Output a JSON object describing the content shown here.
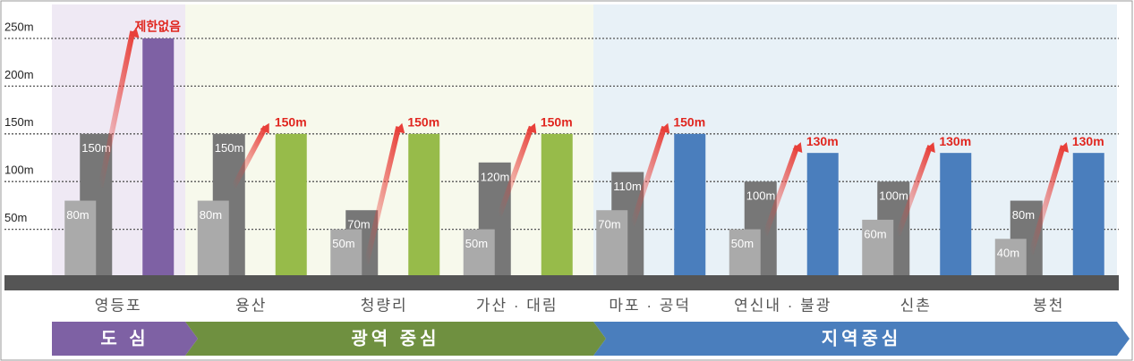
{
  "chart_data": {
    "type": "bar",
    "categories": [
      "영등포",
      "용산",
      "청량리",
      "가산 · 대림",
      "마포 · 공덕",
      "연신내 · 불광",
      "신촌",
      "봉천"
    ],
    "groups": [
      "도 심",
      "광역 중심",
      "지역중심"
    ],
    "series": [
      {
        "color": "#aaaaaa",
        "values": [
          80,
          80,
          50,
          50,
          70,
          50,
          60,
          40
        ],
        "value_labels": [
          "80m",
          "80m",
          "50m",
          "50m",
          "70m",
          "50m",
          "60m",
          "40m"
        ]
      },
      {
        "color": "#777777",
        "values": [
          150,
          150,
          70,
          120,
          110,
          100,
          100,
          80
        ],
        "value_labels": [
          "150m",
          "150m",
          "70m",
          "120m",
          "110m",
          "100m",
          "100m",
          "80m"
        ]
      },
      {
        "colors": [
          "#7e61a4",
          "#97bb4a",
          "#97bb4a",
          "#97bb4a",
          "#4a7ebd",
          "#4a7ebd",
          "#4a7ebd",
          "#4a7ebd"
        ],
        "values": [
          250,
          150,
          150,
          150,
          150,
          130,
          130,
          130
        ],
        "value_labels": [
          "제한없음",
          "150m",
          "150m",
          "150m",
          "150m",
          "130m",
          "130m",
          "130m"
        ]
      }
    ],
    "ylim": [
      0,
      285
    ],
    "yticks": [
      {
        "value": 50,
        "label": "50m"
      },
      {
        "value": 100,
        "label": "100m"
      },
      {
        "value": 150,
        "label": "150m"
      },
      {
        "value": 200,
        "label": "200m"
      },
      {
        "value": 250,
        "label": "250m"
      }
    ],
    "grid": true
  }
}
